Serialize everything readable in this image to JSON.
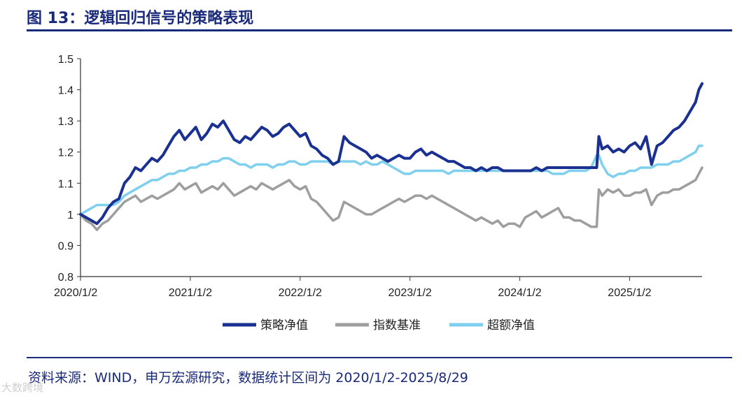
{
  "title": "图 13：逻辑回归信号的策略表现",
  "source": "资料来源：WIND，申万宏源研究，数据统计区间为 2020/1/2-2025/8/29",
  "watermark": "大数跨境",
  "chart_data": {
    "type": "line",
    "title": "图 13：逻辑回归信号的策略表现",
    "xlabel": "",
    "ylabel": "",
    "ylim": [
      0.8,
      1.5
    ],
    "yticks": [
      0.8,
      0.9,
      1,
      1.1,
      1.2,
      1.3,
      1.4,
      1.5
    ],
    "ytick_labels": [
      "0.8",
      "0.9",
      "1",
      "1.1",
      "1.2",
      "1.3",
      "1.4",
      "1.5"
    ],
    "xlim": [
      2020.0,
      2025.66
    ],
    "xticks": [
      2020.0,
      2021.0,
      2022.0,
      2023.0,
      2024.0,
      2025.0
    ],
    "xtick_labels": [
      "2020/1/2",
      "2021/1/2",
      "2022/1/2",
      "2023/1/2",
      "2024/1/2",
      "2025/1/2"
    ],
    "legend_position": "bottom",
    "series": [
      {
        "name": "策略净值",
        "color": "#1a3191",
        "x": [
          2020.0,
          2020.05,
          2020.1,
          2020.15,
          2020.2,
          2020.25,
          2020.3,
          2020.35,
          2020.4,
          2020.45,
          2020.5,
          2020.55,
          2020.6,
          2020.65,
          2020.7,
          2020.75,
          2020.8,
          2020.85,
          2020.9,
          2020.95,
          2021.0,
          2021.05,
          2021.1,
          2021.15,
          2021.2,
          2021.25,
          2021.3,
          2021.35,
          2021.4,
          2021.45,
          2021.5,
          2021.55,
          2021.6,
          2021.65,
          2021.7,
          2021.75,
          2021.8,
          2021.85,
          2021.9,
          2021.95,
          2022.0,
          2022.05,
          2022.1,
          2022.15,
          2022.2,
          2022.25,
          2022.3,
          2022.35,
          2022.4,
          2022.45,
          2022.5,
          2022.55,
          2022.6,
          2022.65,
          2022.7,
          2022.75,
          2022.8,
          2022.85,
          2022.9,
          2022.95,
          2023.0,
          2023.05,
          2023.1,
          2023.15,
          2023.2,
          2023.25,
          2023.3,
          2023.35,
          2023.4,
          2023.45,
          2023.5,
          2023.55,
          2023.6,
          2023.65,
          2023.7,
          2023.75,
          2023.8,
          2023.85,
          2023.9,
          2023.95,
          2024.0,
          2024.05,
          2024.1,
          2024.15,
          2024.2,
          2024.25,
          2024.3,
          2024.35,
          2024.4,
          2024.45,
          2024.5,
          2024.55,
          2024.6,
          2024.65,
          2024.7,
          2024.72,
          2024.75,
          2024.8,
          2024.85,
          2024.9,
          2024.95,
          2025.0,
          2025.05,
          2025.1,
          2025.15,
          2025.2,
          2025.25,
          2025.3,
          2025.35,
          2025.4,
          2025.45,
          2025.5,
          2025.55,
          2025.6,
          2025.63,
          2025.66
        ],
        "values": [
          1.0,
          0.99,
          0.98,
          0.97,
          0.99,
          1.02,
          1.04,
          1.05,
          1.1,
          1.12,
          1.15,
          1.14,
          1.16,
          1.18,
          1.17,
          1.19,
          1.22,
          1.25,
          1.27,
          1.24,
          1.26,
          1.28,
          1.24,
          1.26,
          1.29,
          1.28,
          1.3,
          1.27,
          1.24,
          1.23,
          1.25,
          1.24,
          1.26,
          1.28,
          1.27,
          1.25,
          1.26,
          1.28,
          1.29,
          1.27,
          1.25,
          1.26,
          1.22,
          1.21,
          1.19,
          1.18,
          1.16,
          1.17,
          1.25,
          1.23,
          1.22,
          1.21,
          1.2,
          1.18,
          1.19,
          1.18,
          1.17,
          1.18,
          1.19,
          1.18,
          1.18,
          1.2,
          1.21,
          1.19,
          1.2,
          1.19,
          1.18,
          1.17,
          1.17,
          1.16,
          1.15,
          1.15,
          1.14,
          1.15,
          1.14,
          1.15,
          1.15,
          1.14,
          1.14,
          1.14,
          1.14,
          1.14,
          1.14,
          1.15,
          1.14,
          1.15,
          1.15,
          1.15,
          1.15,
          1.15,
          1.15,
          1.15,
          1.15,
          1.15,
          1.15,
          1.25,
          1.21,
          1.22,
          1.2,
          1.21,
          1.2,
          1.22,
          1.23,
          1.21,
          1.25,
          1.16,
          1.22,
          1.23,
          1.25,
          1.27,
          1.28,
          1.3,
          1.33,
          1.36,
          1.4,
          1.42
        ]
      },
      {
        "name": "指数基准",
        "color": "#9e9e9e",
        "x": [
          2020.0,
          2020.05,
          2020.1,
          2020.15,
          2020.2,
          2020.25,
          2020.3,
          2020.35,
          2020.4,
          2020.45,
          2020.5,
          2020.55,
          2020.6,
          2020.65,
          2020.7,
          2020.75,
          2020.8,
          2020.85,
          2020.9,
          2020.95,
          2021.0,
          2021.05,
          2021.1,
          2021.15,
          2021.2,
          2021.25,
          2021.3,
          2021.35,
          2021.4,
          2021.45,
          2021.5,
          2021.55,
          2021.6,
          2021.65,
          2021.7,
          2021.75,
          2021.8,
          2021.85,
          2021.9,
          2021.95,
          2022.0,
          2022.05,
          2022.1,
          2022.15,
          2022.2,
          2022.25,
          2022.3,
          2022.35,
          2022.4,
          2022.45,
          2022.5,
          2022.55,
          2022.6,
          2022.65,
          2022.7,
          2022.75,
          2022.8,
          2022.85,
          2022.9,
          2022.95,
          2023.0,
          2023.05,
          2023.1,
          2023.15,
          2023.2,
          2023.25,
          2023.3,
          2023.35,
          2023.4,
          2023.45,
          2023.5,
          2023.55,
          2023.6,
          2023.65,
          2023.7,
          2023.75,
          2023.8,
          2023.85,
          2023.9,
          2023.95,
          2024.0,
          2024.05,
          2024.1,
          2024.15,
          2024.2,
          2024.25,
          2024.3,
          2024.35,
          2024.4,
          2024.45,
          2024.5,
          2024.55,
          2024.6,
          2024.65,
          2024.7,
          2024.72,
          2024.75,
          2024.8,
          2024.85,
          2024.9,
          2024.95,
          2025.0,
          2025.05,
          2025.1,
          2025.15,
          2025.2,
          2025.25,
          2025.3,
          2025.35,
          2025.4,
          2025.45,
          2025.5,
          2025.55,
          2025.6,
          2025.63,
          2025.66
        ],
        "values": [
          1.0,
          0.98,
          0.97,
          0.95,
          0.97,
          0.98,
          1.0,
          1.02,
          1.04,
          1.05,
          1.06,
          1.04,
          1.05,
          1.06,
          1.05,
          1.06,
          1.07,
          1.08,
          1.1,
          1.08,
          1.09,
          1.1,
          1.07,
          1.08,
          1.09,
          1.08,
          1.1,
          1.08,
          1.06,
          1.07,
          1.08,
          1.09,
          1.08,
          1.1,
          1.09,
          1.08,
          1.09,
          1.1,
          1.11,
          1.09,
          1.08,
          1.09,
          1.05,
          1.04,
          1.02,
          1.0,
          0.98,
          0.99,
          1.04,
          1.03,
          1.02,
          1.01,
          1.0,
          1.0,
          1.01,
          1.02,
          1.03,
          1.04,
          1.05,
          1.04,
          1.05,
          1.06,
          1.06,
          1.05,
          1.06,
          1.05,
          1.04,
          1.03,
          1.02,
          1.01,
          1.0,
          0.99,
          0.98,
          0.99,
          0.98,
          0.97,
          0.98,
          0.96,
          0.97,
          0.97,
          0.96,
          0.99,
          1.0,
          1.01,
          0.99,
          1.0,
          1.01,
          1.02,
          0.99,
          0.99,
          0.98,
          0.98,
          0.97,
          0.96,
          0.96,
          1.08,
          1.06,
          1.08,
          1.07,
          1.08,
          1.06,
          1.06,
          1.07,
          1.07,
          1.08,
          1.03,
          1.06,
          1.07,
          1.07,
          1.08,
          1.08,
          1.09,
          1.1,
          1.11,
          1.13,
          1.15
        ]
      },
      {
        "name": "超额净值",
        "color": "#7fcfee",
        "x": [
          2020.0,
          2020.05,
          2020.1,
          2020.15,
          2020.2,
          2020.25,
          2020.3,
          2020.35,
          2020.4,
          2020.45,
          2020.5,
          2020.55,
          2020.6,
          2020.65,
          2020.7,
          2020.75,
          2020.8,
          2020.85,
          2020.9,
          2020.95,
          2021.0,
          2021.05,
          2021.1,
          2021.15,
          2021.2,
          2021.25,
          2021.3,
          2021.35,
          2021.4,
          2021.45,
          2021.5,
          2021.55,
          2021.6,
          2021.65,
          2021.7,
          2021.75,
          2021.8,
          2021.85,
          2021.9,
          2021.95,
          2022.0,
          2022.05,
          2022.1,
          2022.15,
          2022.2,
          2022.25,
          2022.3,
          2022.35,
          2022.4,
          2022.45,
          2022.5,
          2022.55,
          2022.6,
          2022.65,
          2022.7,
          2022.75,
          2022.8,
          2022.85,
          2022.9,
          2022.95,
          2023.0,
          2023.05,
          2023.1,
          2023.15,
          2023.2,
          2023.25,
          2023.3,
          2023.35,
          2023.4,
          2023.45,
          2023.5,
          2023.55,
          2023.6,
          2023.65,
          2023.7,
          2023.75,
          2023.8,
          2023.85,
          2023.9,
          2023.95,
          2024.0,
          2024.05,
          2024.1,
          2024.15,
          2024.2,
          2024.25,
          2024.3,
          2024.35,
          2024.4,
          2024.45,
          2024.5,
          2024.55,
          2024.6,
          2024.65,
          2024.7,
          2024.72,
          2024.75,
          2024.8,
          2024.85,
          2024.9,
          2024.95,
          2025.0,
          2025.05,
          2025.1,
          2025.15,
          2025.2,
          2025.25,
          2025.3,
          2025.35,
          2025.4,
          2025.45,
          2025.5,
          2025.55,
          2025.6,
          2025.63,
          2025.66
        ],
        "values": [
          1.0,
          1.01,
          1.02,
          1.03,
          1.03,
          1.03,
          1.03,
          1.04,
          1.06,
          1.07,
          1.08,
          1.09,
          1.1,
          1.11,
          1.11,
          1.12,
          1.13,
          1.13,
          1.14,
          1.14,
          1.15,
          1.15,
          1.16,
          1.16,
          1.17,
          1.17,
          1.18,
          1.18,
          1.17,
          1.16,
          1.16,
          1.15,
          1.16,
          1.16,
          1.16,
          1.15,
          1.16,
          1.16,
          1.17,
          1.17,
          1.16,
          1.16,
          1.17,
          1.17,
          1.17,
          1.17,
          1.16,
          1.17,
          1.17,
          1.17,
          1.17,
          1.16,
          1.17,
          1.16,
          1.16,
          1.17,
          1.16,
          1.15,
          1.14,
          1.13,
          1.13,
          1.14,
          1.14,
          1.14,
          1.14,
          1.14,
          1.14,
          1.13,
          1.14,
          1.14,
          1.14,
          1.14,
          1.14,
          1.14,
          1.14,
          1.14,
          1.14,
          1.14,
          1.14,
          1.14,
          1.14,
          1.14,
          1.14,
          1.14,
          1.14,
          1.14,
          1.13,
          1.13,
          1.13,
          1.14,
          1.14,
          1.14,
          1.14,
          1.15,
          1.19,
          1.19,
          1.16,
          1.13,
          1.12,
          1.13,
          1.13,
          1.14,
          1.14,
          1.15,
          1.15,
          1.15,
          1.16,
          1.16,
          1.16,
          1.17,
          1.17,
          1.18,
          1.19,
          1.2,
          1.22,
          1.22
        ]
      }
    ]
  }
}
